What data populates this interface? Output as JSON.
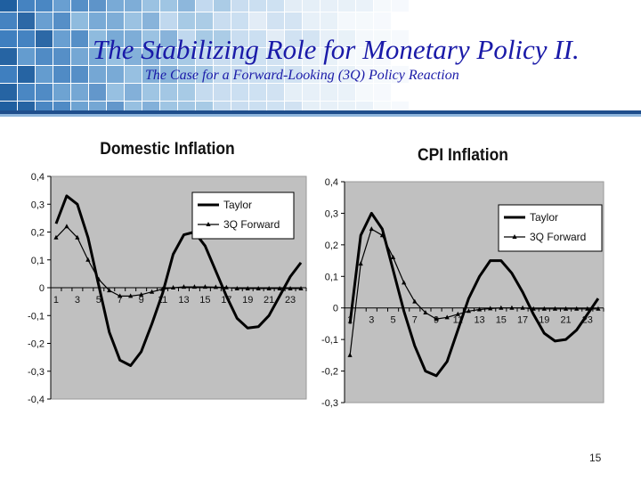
{
  "slide": {
    "title": "The Stabilizing Role for Monetary Policy II.",
    "subtitle": "The Case for a Forward-Looking (3Q) Policy Reaction",
    "page_number": "15"
  },
  "colors": {
    "title": "#1a1aa8",
    "plot_background": "#c0c0c0",
    "series": "#000000",
    "header_rule": "#1f4e8c"
  },
  "chart_data": [
    {
      "type": "line",
      "title": "Domestic Inflation",
      "x": [
        1,
        2,
        3,
        4,
        5,
        6,
        7,
        8,
        9,
        10,
        11,
        12,
        13,
        14,
        15,
        16,
        17,
        18,
        19,
        20,
        21,
        22,
        23,
        24
      ],
      "xticks": [
        "1",
        "3",
        "5",
        "7",
        "9",
        "11",
        "13",
        "15",
        "17",
        "19",
        "21",
        "23"
      ],
      "ylim": [
        -0.4,
        0.4
      ],
      "yticks": [
        "0,4",
        "0,3",
        "0,2",
        "0,1",
        "0",
        "-0,1",
        "-0,2",
        "-0,3",
        "-0,4"
      ],
      "legend_position": "top-right",
      "grid": false,
      "series": [
        {
          "name": "Taylor",
          "marker": "none",
          "values": [
            0.23,
            0.33,
            0.3,
            0.18,
            0.01,
            -0.16,
            -0.26,
            -0.28,
            -0.23,
            -0.13,
            -0.02,
            0.12,
            0.19,
            0.2,
            0.15,
            0.06,
            -0.03,
            -0.11,
            -0.145,
            -0.14,
            -0.1,
            -0.03,
            0.04,
            0.09
          ]
        },
        {
          "name": "3Q Forward",
          "marker": "triangle",
          "values": [
            0.18,
            0.22,
            0.18,
            0.1,
            0.03,
            -0.01,
            -0.03,
            -0.03,
            -0.025,
            -0.015,
            -0.005,
            0.0,
            0.003,
            0.003,
            0.003,
            0.002,
            0.001,
            -0.003,
            -0.003,
            -0.003,
            -0.003,
            -0.003,
            -0.003,
            -0.003
          ]
        }
      ]
    },
    {
      "type": "line",
      "title": "CPI Inflation",
      "x": [
        1,
        2,
        3,
        4,
        5,
        6,
        7,
        8,
        9,
        10,
        11,
        12,
        13,
        14,
        15,
        16,
        17,
        18,
        19,
        20,
        21,
        22,
        23,
        24
      ],
      "xticks": [
        "1",
        "3",
        "5",
        "7",
        "9",
        "11",
        "13",
        "15",
        "17",
        "19",
        "21",
        "23"
      ],
      "ylim": [
        -0.3,
        0.4
      ],
      "yticks": [
        "0,4",
        "0,3",
        "0,2",
        "0,1",
        "0",
        "-0,1",
        "-0,2",
        "-0,3"
      ],
      "legend_position": "top-right",
      "grid": false,
      "series": [
        {
          "name": "Taylor",
          "marker": "none",
          "values": [
            -0.05,
            0.23,
            0.3,
            0.25,
            0.12,
            -0.01,
            -0.12,
            -0.2,
            -0.215,
            -0.17,
            -0.07,
            0.03,
            0.1,
            0.15,
            0.15,
            0.11,
            0.05,
            -0.02,
            -0.08,
            -0.105,
            -0.1,
            -0.07,
            -0.02,
            0.03
          ]
        },
        {
          "name": "3Q Forward",
          "marker": "triangle",
          "values": [
            -0.15,
            0.14,
            0.25,
            0.23,
            0.16,
            0.08,
            0.02,
            -0.015,
            -0.035,
            -0.03,
            -0.02,
            -0.01,
            -0.005,
            -0.002,
            0.0,
            0.0,
            0.0,
            -0.003,
            -0.003,
            -0.003,
            -0.003,
            -0.003,
            -0.003,
            -0.003
          ]
        }
      ]
    }
  ]
}
